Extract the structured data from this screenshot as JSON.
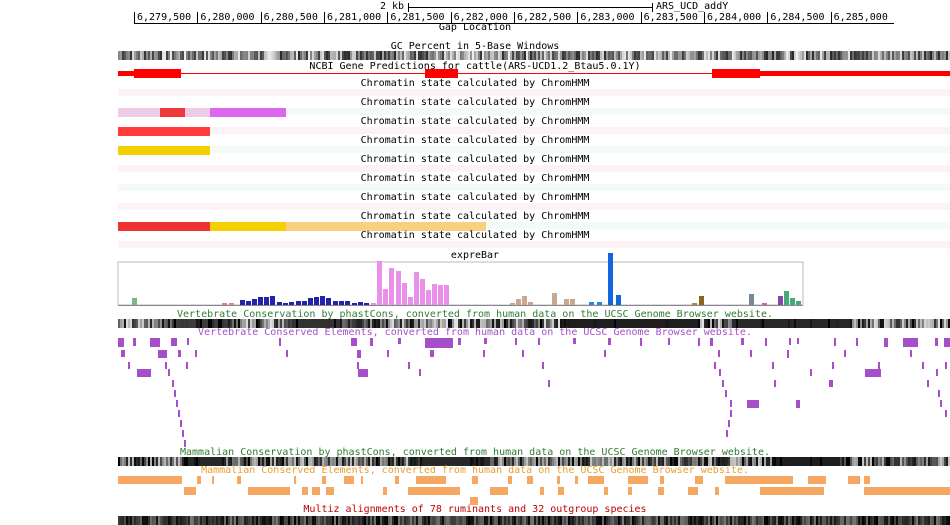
{
  "header": {
    "scale_label": "2 kb",
    "assembly": "ARS_UCD_addY"
  },
  "ruler": {
    "ticks": [
      "6,279,500",
      "6,280,000",
      "6,280,500",
      "6,281,000",
      "6,281,500",
      "6,282,000",
      "6,282,500",
      "6,283,000",
      "6,283,500",
      "6,284,000",
      "6,284,500",
      "6,285,000"
    ]
  },
  "tracks": {
    "gap": "Gap Location",
    "gc_percent": "GC Percent in 5-Base Windows",
    "ncbi_genes": "NCBI Gene Predictions for cattle(ARS-UCD1.2_Btau5.0.1Y)",
    "chromatin": [
      "Chromatin state calculated by ChromHMM",
      "Chromatin state calculated by ChromHMM",
      "Chromatin state calculated by ChromHMM",
      "Chromatin state calculated by ChromHMM",
      "Chromatin state calculated by ChromHMM",
      "Chromatin state calculated by ChromHMM",
      "Chromatin state calculated by ChromHMM",
      "Chromatin state calculated by ChromHMM",
      "Chromatin state calculated by ChromHMM"
    ],
    "exprebar": "expreBar",
    "vert_cons": "Vertebrate Conservation by phastCons, converted from human data on the UCSC Genome Browser website.",
    "vert_elements": "Vertebrate Conserved Elements, converted from human data on the UCSC Genome Browser website.",
    "mamm_cons": "Mammalian Conservation by phastCons, converted from human data on the UCSC Genome Browser website.",
    "mamm_elements": "Mammalian Conserved Elements, converted from human data on the UCSC Genome Browser website.",
    "multiz": "Multiz alignments of 78 ruminants and 32 outgroup species"
  },
  "colors": {
    "gene": "#ff0000",
    "vert_cons_label": "#2e7d32",
    "vert_elem": "#a64fc8",
    "mamm_cons_label": "#2e7d32",
    "mamm_elem_label": "#e8a030",
    "mamm_elem": "#f6a862",
    "multiz_label": "#c00000"
  }
}
